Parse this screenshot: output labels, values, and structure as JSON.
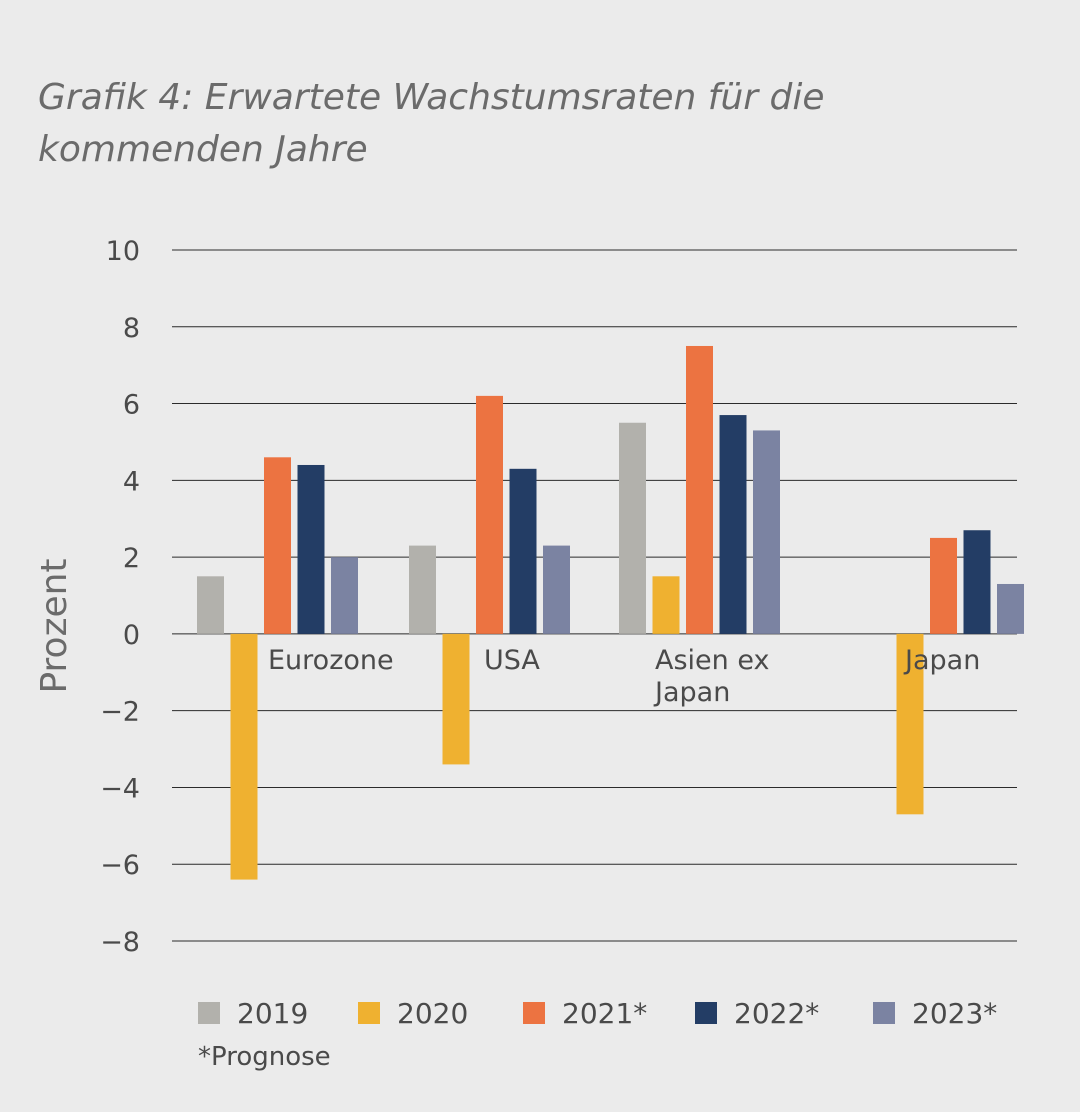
{
  "title_line1": "Grafik 4: Erwartete Wachstumsraten für die",
  "title_line2": "kommenden Jahre",
  "footnote": "*Prognose",
  "colors": {
    "background": "#ebebeb",
    "grid": "#2b2b2b",
    "text": "#4a4a4a"
  },
  "chart_data": {
    "type": "bar",
    "ylabel": "Prozent",
    "ylim": [
      -8,
      10
    ],
    "yticks": [
      10,
      8,
      6,
      4,
      2,
      0,
      -2,
      -4,
      -6,
      -8
    ],
    "ytick_labels": [
      "10",
      "8",
      "6",
      "4",
      "2",
      "0",
      "−2",
      "−4",
      "−6",
      "−8"
    ],
    "grid": true,
    "legend_position": "bottom",
    "categories": [
      {
        "name": "Eurozone",
        "label_lines": [
          "Eurozone"
        ]
      },
      {
        "name": "USA",
        "label_lines": [
          "USA"
        ]
      },
      {
        "name": "Asien ex Japan",
        "label_lines": [
          "Asien ex",
          "Japan"
        ]
      },
      {
        "name": "Japan",
        "label_lines": [
          "Japan"
        ]
      }
    ],
    "series": [
      {
        "name": "2019",
        "color": "#b2b1ac",
        "values": [
          1.5,
          2.3,
          5.5,
          null
        ]
      },
      {
        "name": "2020",
        "color": "#efb130",
        "values": [
          -6.4,
          -3.4,
          1.5,
          -4.7
        ]
      },
      {
        "name": "2021*",
        "color": "#ec7341",
        "values": [
          4.6,
          6.2,
          7.5,
          2.5
        ]
      },
      {
        "name": "2022*",
        "color": "#233d65",
        "values": [
          4.4,
          4.3,
          5.7,
          2.7
        ]
      },
      {
        "name": "2023*",
        "color": "#7b83a2",
        "values": [
          2.0,
          2.3,
          5.3,
          1.3
        ]
      }
    ]
  }
}
